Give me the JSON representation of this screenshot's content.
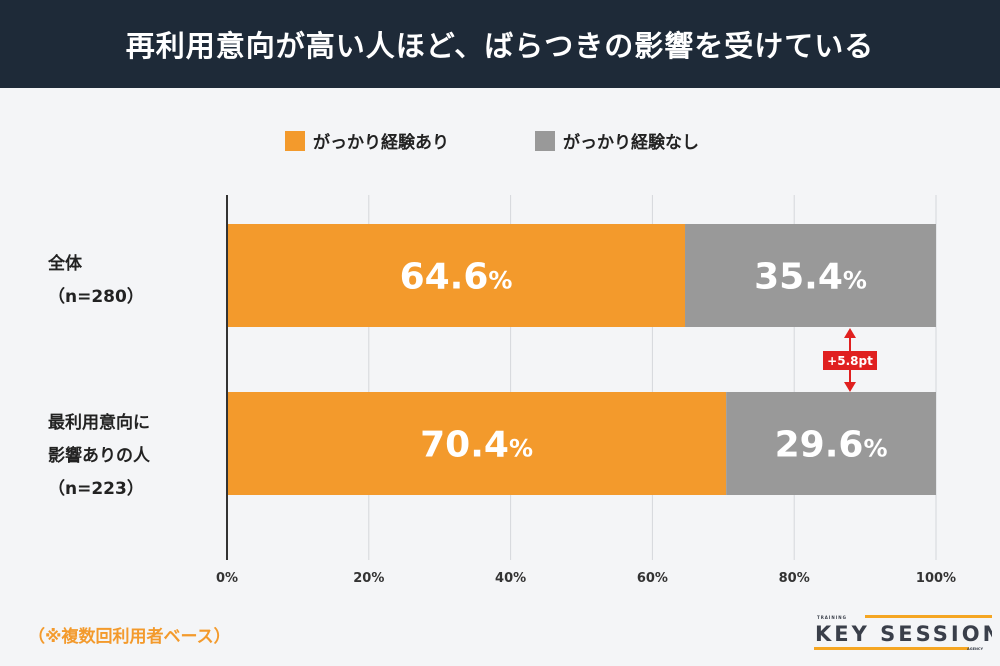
{
  "title": "再利用意向が高い人ほど、ばらつきの影響を受けている",
  "chart_data": {
    "type": "bar",
    "orientation": "horizontal",
    "stacked": true,
    "categories": [
      "全体（n=280）",
      "最利用意向に影響ありの人（n=223）"
    ],
    "category_lines": [
      [
        "全体",
        "（n=280）"
      ],
      [
        "最利用意向に",
        "影響ありの人",
        "（n=223）"
      ]
    ],
    "series": [
      {
        "name": "がっかり経験あり",
        "values": [
          64.6,
          70.4
        ],
        "color": "#f39a2c"
      },
      {
        "name": "がっかり経験なし",
        "values": [
          35.4,
          29.6
        ],
        "color": "#999999"
      }
    ],
    "xlim": [
      0,
      100
    ],
    "xticks": [
      "0%",
      "20%",
      "40%",
      "60%",
      "80%",
      "100%"
    ],
    "grid": true,
    "legend": "top",
    "annotation": {
      "label": "+5.8pt",
      "color": "#e02020"
    }
  },
  "note": "（※複数回利用者ベース）",
  "logo": {
    "top": "TRAINING",
    "main": "KEY SESSION",
    "bottom": "AGENCY",
    "accent": "#f5a623"
  }
}
